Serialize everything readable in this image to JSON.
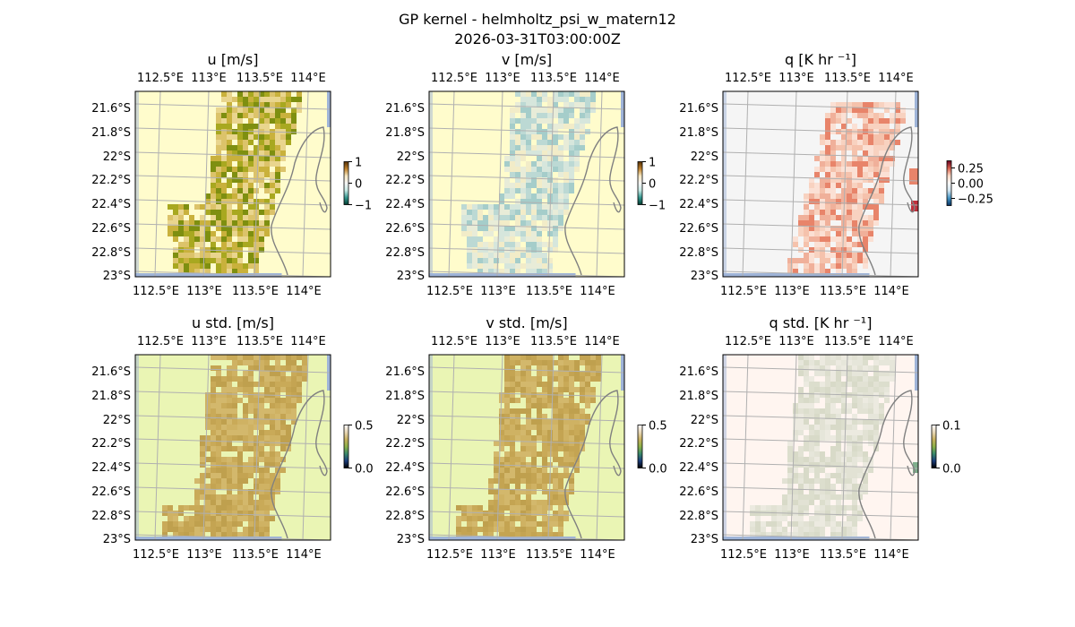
{
  "figure": {
    "title_line1": "GP kernel - helmholtz_psi_w_matern12",
    "title_line2": "2026-03-31T03:00:00Z"
  },
  "chart_data": [
    {
      "type": "heatmap",
      "id": "u",
      "title": "u [m/s]",
      "top_lon_ticks": [
        "112.5°E",
        "113°E",
        "113.5°E",
        "114°E"
      ],
      "bottom_lon_ticks": [
        "112.5°E",
        "113°E",
        "113.5°E",
        "114°E"
      ],
      "lat_ticks": [
        "21.6°S",
        "21.8°S",
        "22°S",
        "22.2°S",
        "22.4°S",
        "22.6°S",
        "22.8°S",
        "23°S"
      ],
      "colorbar": {
        "ticks": [
          "1",
          "0",
          "−1"
        ],
        "range": [
          -1,
          1
        ],
        "colormap": "BrBG"
      },
      "background_color": "#fffccc",
      "field_colors": [
        "#e9d58e",
        "#dcc36a",
        "#c9b13c",
        "#a8a820",
        "#7e8f10",
        "#f0e6b4"
      ]
    },
    {
      "type": "heatmap",
      "id": "v",
      "title": "v [m/s]",
      "top_lon_ticks": [
        "112.5°E",
        "113°E",
        "113.5°E",
        "114°E"
      ],
      "bottom_lon_ticks": [
        "112.5°E",
        "113°E",
        "113.5°E",
        "114°E"
      ],
      "lat_ticks": [
        "21.6°S",
        "21.8°S",
        "22°S",
        "22.2°S",
        "22.4°S",
        "22.6°S",
        "22.8°S",
        "23°S"
      ],
      "colorbar": {
        "ticks": [
          "1",
          "0",
          "−1"
        ],
        "range": [
          -1,
          1
        ],
        "colormap": "BrBG"
      },
      "background_color": "#fffccc",
      "field_colors": [
        "#d6e6dc",
        "#bcd9d4",
        "#a5cdca",
        "#e8ecd8",
        "#f2ecc8",
        "#dcd49c"
      ]
    },
    {
      "type": "heatmap",
      "id": "q",
      "title": "q [K hr ⁻¹]",
      "top_lon_ticks": [
        "112.5°E",
        "113°E",
        "113.5°E",
        "114°E"
      ],
      "bottom_lon_ticks": [
        "112.5°E",
        "113°E",
        "113.5°E",
        "114°E"
      ],
      "lat_ticks": [
        "21.6°S",
        "21.8°S",
        "22°S",
        "22.2°S",
        "22.4°S",
        "22.6°S",
        "22.8°S",
        "23°S"
      ],
      "colorbar": {
        "ticks": [
          "0.25",
          "0.00",
          "−0.25"
        ],
        "range": [
          -0.35,
          0.35
        ],
        "colormap": "RdBu_r"
      },
      "background_color": "#f5f5f5",
      "field_colors": [
        "#fbe0d4",
        "#f8d2c0",
        "#f5c2ac",
        "#f0b09a",
        "#e8846a",
        "#c0303c"
      ]
    },
    {
      "type": "heatmap",
      "id": "u_std",
      "title": "u std. [m/s]",
      "top_lon_ticks": [
        "112.5°E",
        "113°E",
        "113.5°E",
        "114°E"
      ],
      "bottom_lon_ticks": [
        "112.5°E",
        "113°E",
        "113.5°E",
        "114°E"
      ],
      "lat_ticks": [
        "21.6°S",
        "21.8°S",
        "22°S",
        "22.2°S",
        "22.4°S",
        "22.6°S",
        "22.8°S",
        "23°S"
      ],
      "colorbar": {
        "ticks": [
          "0.5",
          "0.0"
        ],
        "range": [
          0,
          0.5
        ],
        "colormap": "gist_earth"
      },
      "background_color": "#eaf5b4",
      "field_colors": [
        "#c9aa58",
        "#c4a452",
        "#cfb263",
        "#bfa04e",
        "#d3b86c",
        "#c8a85a"
      ]
    },
    {
      "type": "heatmap",
      "id": "v_std",
      "title": "v std. [m/s]",
      "top_lon_ticks": [
        "112.5°E",
        "113°E",
        "113.5°E",
        "114°E"
      ],
      "bottom_lon_ticks": [
        "112.5°E",
        "113°E",
        "113.5°E",
        "114°E"
      ],
      "lat_ticks": [
        "21.6°S",
        "21.8°S",
        "22°S",
        "22.2°S",
        "22.4°S",
        "22.6°S",
        "22.8°S",
        "23°S"
      ],
      "colorbar": {
        "ticks": [
          "0.5",
          "0.0"
        ],
        "range": [
          0,
          0.5
        ],
        "colormap": "gist_earth"
      },
      "background_color": "#eaf5b4",
      "field_colors": [
        "#c9aa58",
        "#c4a452",
        "#cfb263",
        "#bfa04e",
        "#d3b86c",
        "#c8a85a"
      ]
    },
    {
      "type": "heatmap",
      "id": "q_std",
      "title": "q std. [K hr ⁻¹]",
      "top_lon_ticks": [
        "112.5°E",
        "113°E",
        "113.5°E",
        "114°E"
      ],
      "bottom_lon_ticks": [
        "112.5°E",
        "113°E",
        "113.5°E",
        "114°E"
      ],
      "lat_ticks": [
        "21.6°S",
        "21.8°S",
        "22°S",
        "22.2°S",
        "22.4°S",
        "22.6°S",
        "22.8°S",
        "23°S"
      ],
      "colorbar": {
        "ticks": [
          "0.1",
          "0.0"
        ],
        "range": [
          0,
          0.1
        ],
        "colormap": "gist_earth"
      },
      "background_color": "#fff5f0",
      "field_colors": [
        "#e6e6da",
        "#dcdecd",
        "#d8dac8",
        "#e2e2d4",
        "#eceae0",
        "#7fae8c"
      ]
    }
  ],
  "colors": {
    "grid": "#b0b0b0",
    "coastline": "#808080",
    "ocean_edge": "#9fb4d8"
  }
}
